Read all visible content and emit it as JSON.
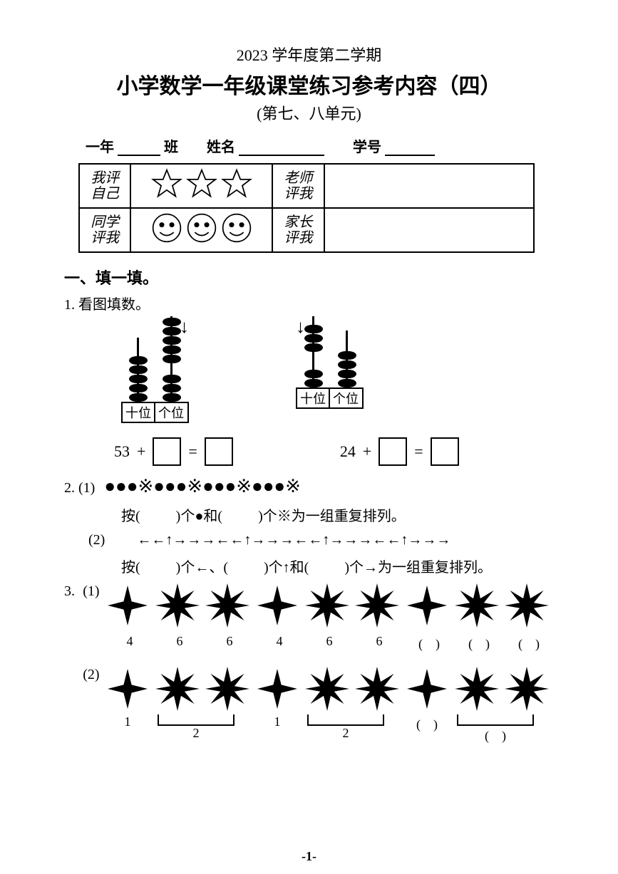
{
  "header": {
    "semester": "2023 学年度第二学期",
    "title": "小学数学一年级课堂练习参考内容（四）",
    "subtitle": "(第七、八单元)"
  },
  "info": {
    "grade": "一年",
    "class_label": "班",
    "name_label": "姓名",
    "id_label": "学号",
    "blank_widths": {
      "class": 60,
      "name": 120,
      "id": 70
    }
  },
  "eval": {
    "rows": [
      {
        "left": "我评\n自己",
        "mid_type": "stars",
        "count": 3,
        "right": "老师\n评我"
      },
      {
        "left": "同学\n评我",
        "mid_type": "smiles",
        "count": 3,
        "right": "家长\n评我"
      }
    ],
    "colors": {
      "stroke": "#000000",
      "fill": "#ffffff"
    }
  },
  "sec1": {
    "heading": "一、填一填。",
    "q1": {
      "label": "1. 看图填数。",
      "abacus": [
        {
          "tens_beads": 5,
          "ones_beads": 3,
          "add_beads": 5,
          "arrow_side": "right",
          "tens": "十位",
          "ones": "个位",
          "equation_left": "53",
          "op": "+"
        },
        {
          "tens_beads": 2,
          "ones_beads": 4,
          "add_beads": 3,
          "arrow_side": "left",
          "tens": "十位",
          "ones": "个位",
          "equation_left": "24",
          "op": "+"
        }
      ]
    },
    "q2": {
      "label": "2.",
      "p1": {
        "sub": "(1)",
        "pattern": "●●●※●●●※●●●※●●●※",
        "text_parts": [
          "按(",
          ")个●和(",
          ")个※为一组重复排列。"
        ]
      },
      "p2": {
        "sub": "(2)",
        "pattern": "←←↑→→→←←↑→→→←←↑→→→←←↑→→→",
        "text_parts": [
          "按(",
          ")个←、(",
          ")个↑和(",
          ")个→为一组重复排列。"
        ]
      }
    },
    "q3": {
      "label": "3.",
      "p1": {
        "sub": "(1)",
        "stars": [
          4,
          6,
          6,
          4,
          6,
          6,
          4,
          6,
          6
        ],
        "labels": [
          "4",
          "6",
          "6",
          "4",
          "6",
          "6",
          "(　)",
          "(　)",
          "(　)"
        ]
      },
      "p2": {
        "sub": "(2)",
        "stars": [
          4,
          6,
          6,
          4,
          6,
          6,
          4,
          6,
          6
        ],
        "groups": [
          {
            "single": "1",
            "pair": "2"
          },
          {
            "single": "1",
            "pair": "2"
          },
          {
            "single": "(　)",
            "pair": "(　)"
          }
        ]
      }
    }
  },
  "page_number": "-1-",
  "colors": {
    "black": "#000000",
    "white": "#ffffff"
  },
  "fontsizes": {
    "title": 30,
    "body": 20,
    "small": 18
  }
}
